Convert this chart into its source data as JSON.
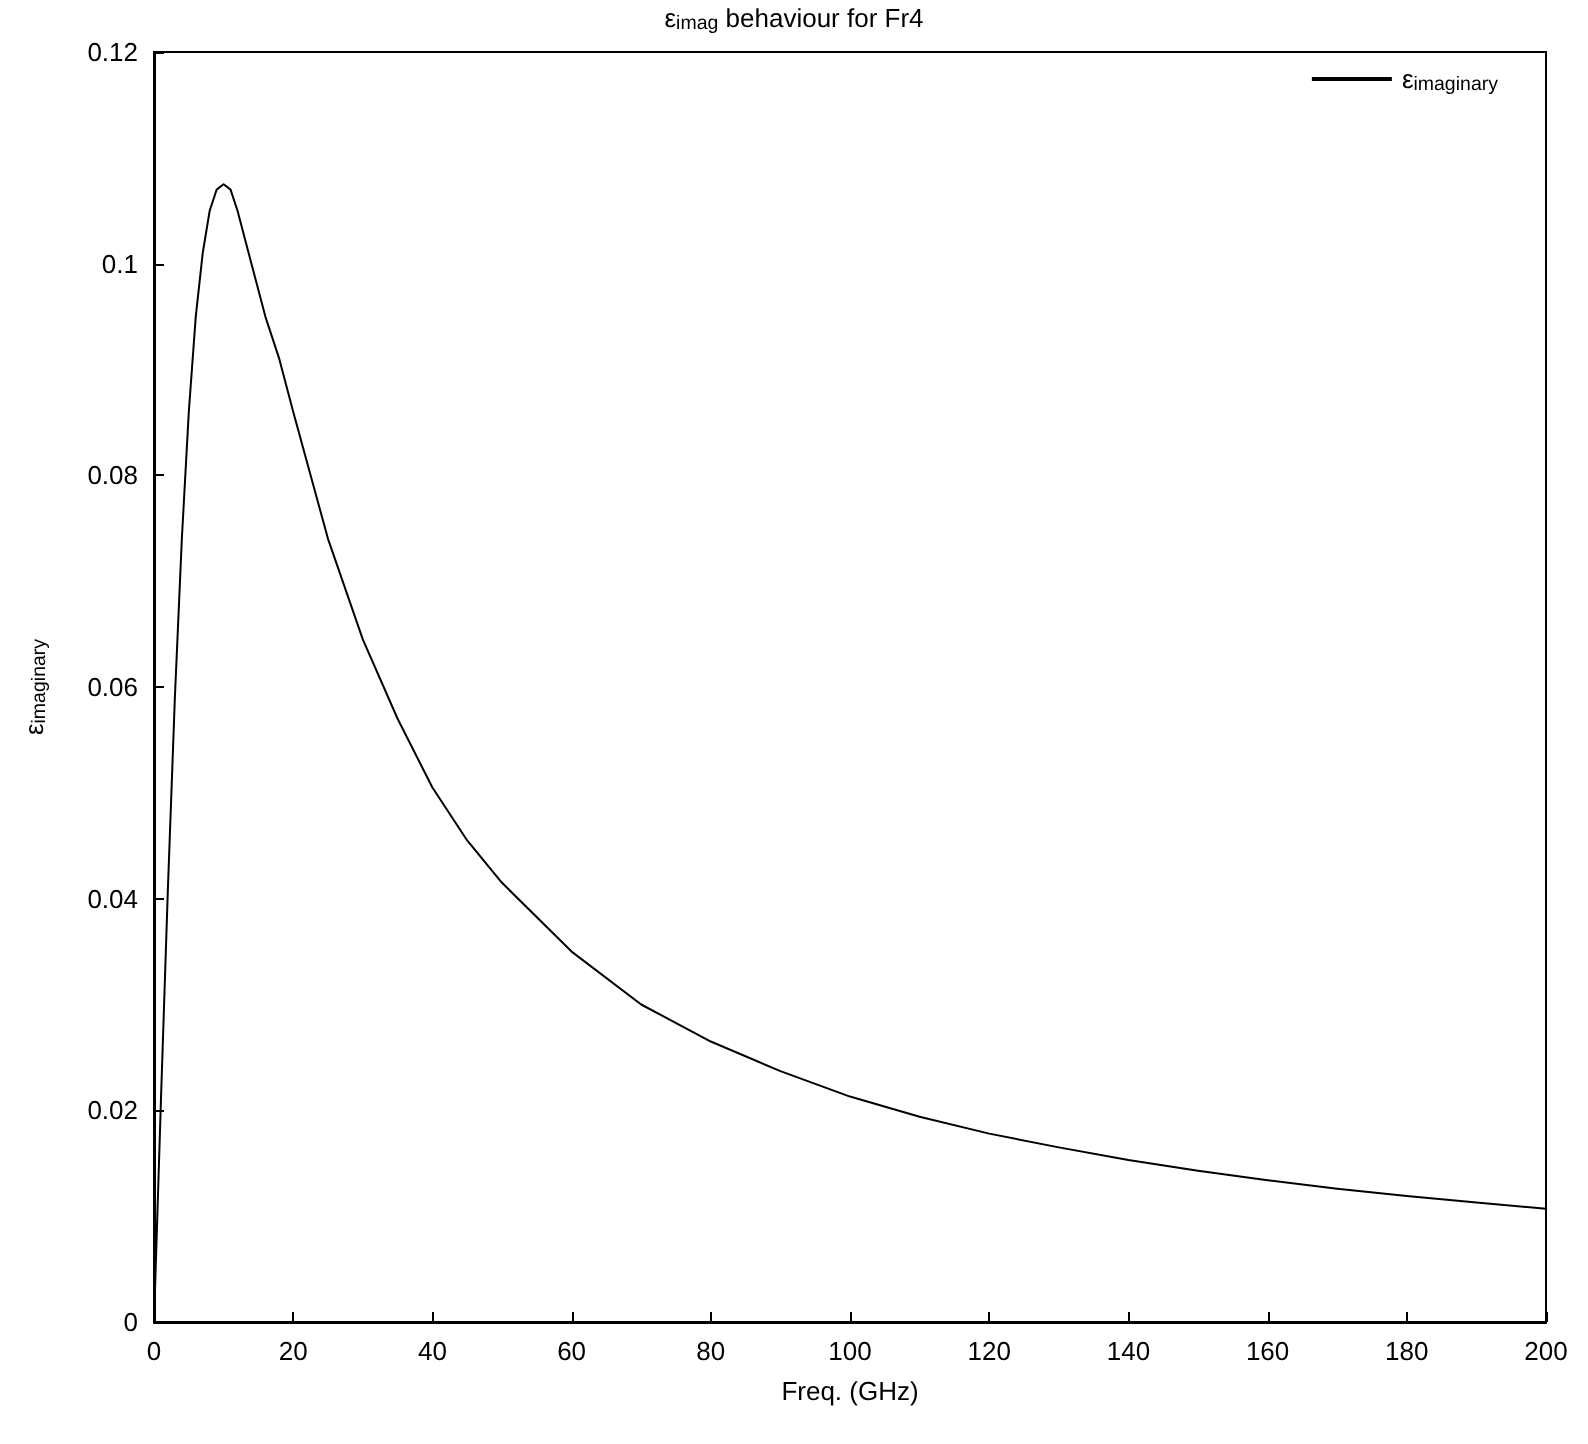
{
  "chart_data": {
    "type": "line",
    "title": "ε$_{imag}$ behaviour for Fr4",
    "xlabel": "Freq. (GHz)",
    "ylabel": "ε$_{imaginary}$",
    "x": [
      0,
      1,
      2,
      3,
      4,
      5,
      6,
      7,
      8,
      9,
      10,
      11,
      12,
      14,
      16,
      18,
      20,
      25,
      30,
      35,
      40,
      45,
      50,
      60,
      70,
      80,
      90,
      100,
      110,
      120,
      130,
      140,
      150,
      160,
      170,
      180,
      190,
      200
    ],
    "series": [
      {
        "name": "ε$_{imaginary}$",
        "color": "#000000",
        "values": [
          0,
          0.021,
          0.041,
          0.059,
          0.074,
          0.086,
          0.095,
          0.101,
          0.105,
          0.107,
          0.1075,
          0.107,
          0.105,
          0.1,
          0.095,
          0.091,
          0.086,
          0.074,
          0.0645,
          0.057,
          0.0505,
          0.0455,
          0.0415,
          0.035,
          0.03,
          0.0265,
          0.0237,
          0.0213,
          0.0194,
          0.0178,
          0.0165,
          0.0153,
          0.0143,
          0.0134,
          0.0126,
          0.0119,
          0.0113,
          0.0107
        ]
      }
    ],
    "xlim": [
      0,
      200
    ],
    "xticks": [
      0,
      20,
      40,
      60,
      80,
      100,
      120,
      140,
      160,
      180,
      200
    ],
    "ylim": [
      0,
      0.12
    ],
    "yticks": [
      0,
      0.02,
      0.04,
      0.06,
      0.08,
      0.1,
      0.12
    ],
    "grid": false,
    "legend": "top right",
    "marker": "none",
    "line_style": "solid"
  }
}
